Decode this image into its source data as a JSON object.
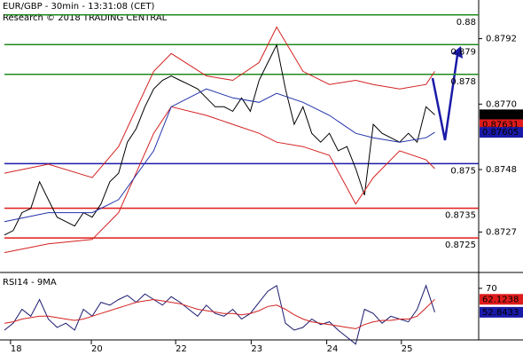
{
  "chart_data": [
    {
      "type": "line",
      "title": "EUR/GBP - 30min - 13:31:08 (CET)",
      "subtitle": "Research © 2018 TRADING CENTRAL",
      "xlim": [
        -0.5,
        54
      ],
      "ylim": [
        0.8714,
        0.8805
      ],
      "yticks": [
        0.8792,
        {
          "value": 0.877,
          "label": "0.8770"
        },
        0.8748,
        0.8727
      ],
      "levels": [
        {
          "value": 0.88,
          "color": "#1e8b1e"
        },
        {
          "value": 0.879,
          "color": "#1e8b1e"
        },
        {
          "value": 0.878,
          "color": "#1e8b1e"
        },
        {
          "value": 0.875,
          "color": "#1a1aa8"
        },
        {
          "value": 0.8735,
          "color": "#e01b1b"
        },
        {
          "value": 0.8725,
          "color": "#e01b1b"
        }
      ],
      "markers": [
        {
          "value": 0.87664,
          "color": "#000000"
        },
        {
          "value": 0.87631,
          "color": "#e01b1b"
        },
        {
          "value": 0.87605,
          "color": "#1a1aa8"
        }
      ],
      "series": [
        {
          "color": "#000000",
          "x": [
            0,
            1,
            2,
            3,
            4,
            5,
            6,
            7,
            8,
            9,
            10,
            11,
            12,
            13,
            14,
            15,
            16,
            17,
            18,
            19,
            20,
            21,
            22,
            23,
            24,
            25,
            26,
            27,
            28,
            29,
            30,
            31,
            32,
            33,
            34,
            35,
            36,
            37,
            38,
            39,
            40,
            41,
            42,
            43,
            44,
            45,
            46,
            47,
            48,
            49
          ],
          "values": [
            0.8726,
            0.87275,
            0.87335,
            0.87349,
            0.87439,
            0.87379,
            0.8732,
            0.87305,
            0.8729,
            0.87335,
            0.8732,
            0.87364,
            0.87439,
            0.87468,
            0.87572,
            0.87617,
            0.87691,
            0.87751,
            0.8778,
            0.87795,
            0.8778,
            0.87766,
            0.87751,
            0.87721,
            0.87691,
            0.87691,
            0.87676,
            0.87721,
            0.87676,
            0.8778,
            0.8784,
            0.87899,
            0.87751,
            0.87632,
            0.87691,
            0.87602,
            0.87572,
            0.87602,
            0.87543,
            0.87557,
            0.87483,
            0.87394,
            0.87632,
            0.87602,
            0.87587,
            0.87572,
            0.87602,
            0.87572,
            0.87691,
            0.87664
          ]
        },
        {
          "color": "#d42020",
          "x": [
            0,
            5,
            10,
            13,
            17,
            19,
            23,
            26,
            29,
            31,
            34,
            37,
            40,
            42,
            45,
            48,
            49
          ],
          "values": [
            0.87468,
            0.87498,
            0.87453,
            0.87557,
            0.8781,
            0.8787,
            0.87795,
            0.8778,
            0.8784,
            0.87959,
            0.8781,
            0.87766,
            0.8778,
            0.87766,
            0.87751,
            0.87766,
            0.8781
          ]
        },
        {
          "color": "#d42020",
          "x": [
            0,
            5,
            10,
            13,
            17,
            19,
            23,
            26,
            29,
            31,
            34,
            37,
            40,
            42,
            45,
            48,
            49
          ],
          "values": [
            0.87201,
            0.8723,
            0.87245,
            0.87335,
            0.87602,
            0.87691,
            0.87662,
            0.87632,
            0.87602,
            0.87572,
            0.87557,
            0.87528,
            0.87364,
            0.87453,
            0.87543,
            0.87513,
            0.87483
          ]
        },
        {
          "color": "#2233aa",
          "x": [
            0,
            5,
            10,
            13,
            17,
            19,
            23,
            26,
            29,
            31,
            34,
            37,
            40,
            42,
            45,
            48,
            49
          ],
          "values": [
            0.87305,
            0.87335,
            0.87335,
            0.87379,
            0.87543,
            0.87691,
            0.87751,
            0.87721,
            0.87706,
            0.87736,
            0.87706,
            0.87662,
            0.87602,
            0.87587,
            0.87572,
            0.87587,
            0.87605
          ]
        }
      ]
    },
    {
      "type": "line",
      "title": "RSI14 - 9MA",
      "xlim": [
        -0.5,
        54
      ],
      "ylim": [
        33,
        79.5
      ],
      "yticks": [
        70
      ],
      "xticks": [
        {
          "value": 0.7,
          "label": "18"
        },
        {
          "value": 9.9,
          "label": "20"
        },
        {
          "value": 19.5,
          "label": "22"
        },
        {
          "value": 28.1,
          "label": "23"
        },
        {
          "value": 36.7,
          "label": "24"
        },
        {
          "value": 45.2,
          "label": "25"
        }
      ],
      "markers": [
        {
          "value": 62.1238,
          "color": "#e01b1b"
        },
        {
          "value": 52.8433,
          "color": "#1a1aa8"
        }
      ],
      "series": [
        {
          "color": "#1a1a6e",
          "x": [
            0,
            1,
            2,
            3,
            4,
            5,
            6,
            7,
            8,
            9,
            10,
            11,
            12,
            13,
            14,
            15,
            16,
            17,
            18,
            19,
            20,
            21,
            22,
            23,
            24,
            25,
            26,
            27,
            28,
            29,
            30,
            31,
            32,
            33,
            34,
            35,
            36,
            37,
            38,
            39,
            40,
            41,
            42,
            43,
            44,
            45,
            46,
            47,
            48,
            49
          ],
          "values": [
            40,
            45,
            55,
            50,
            62,
            48,
            42,
            45,
            40,
            55,
            50,
            60,
            58,
            62,
            65,
            60,
            66,
            62,
            58,
            64,
            60,
            55,
            50,
            58,
            52,
            50,
            55,
            48,
            52,
            60,
            68,
            72,
            45,
            40,
            42,
            48,
            44,
            46,
            40,
            35,
            30,
            55,
            52,
            45,
            50,
            48,
            46,
            55,
            72,
            52.8433
          ]
        },
        {
          "color": "#d42020",
          "x": [
            0,
            1,
            2,
            3,
            4,
            5,
            6,
            7,
            8,
            9,
            10,
            11,
            12,
            13,
            14,
            15,
            16,
            17,
            18,
            19,
            20,
            21,
            22,
            23,
            24,
            25,
            26,
            27,
            28,
            29,
            30,
            31,
            32,
            33,
            34,
            35,
            36,
            37,
            38,
            39,
            40,
            41,
            42,
            43,
            44,
            45,
            46,
            47,
            48,
            49
          ],
          "values": [
            45,
            46,
            48,
            49,
            50,
            50,
            49,
            48,
            47,
            48,
            50,
            52,
            54,
            56,
            58,
            60,
            61,
            62,
            61,
            60,
            59,
            57,
            55,
            54,
            53,
            52,
            52,
            51,
            52,
            54,
            57,
            58,
            55,
            51,
            48,
            46,
            45,
            44,
            43,
            42,
            41,
            44,
            46,
            47,
            47,
            48,
            48,
            50,
            56,
            62.1238
          ]
        }
      ]
    }
  ]
}
